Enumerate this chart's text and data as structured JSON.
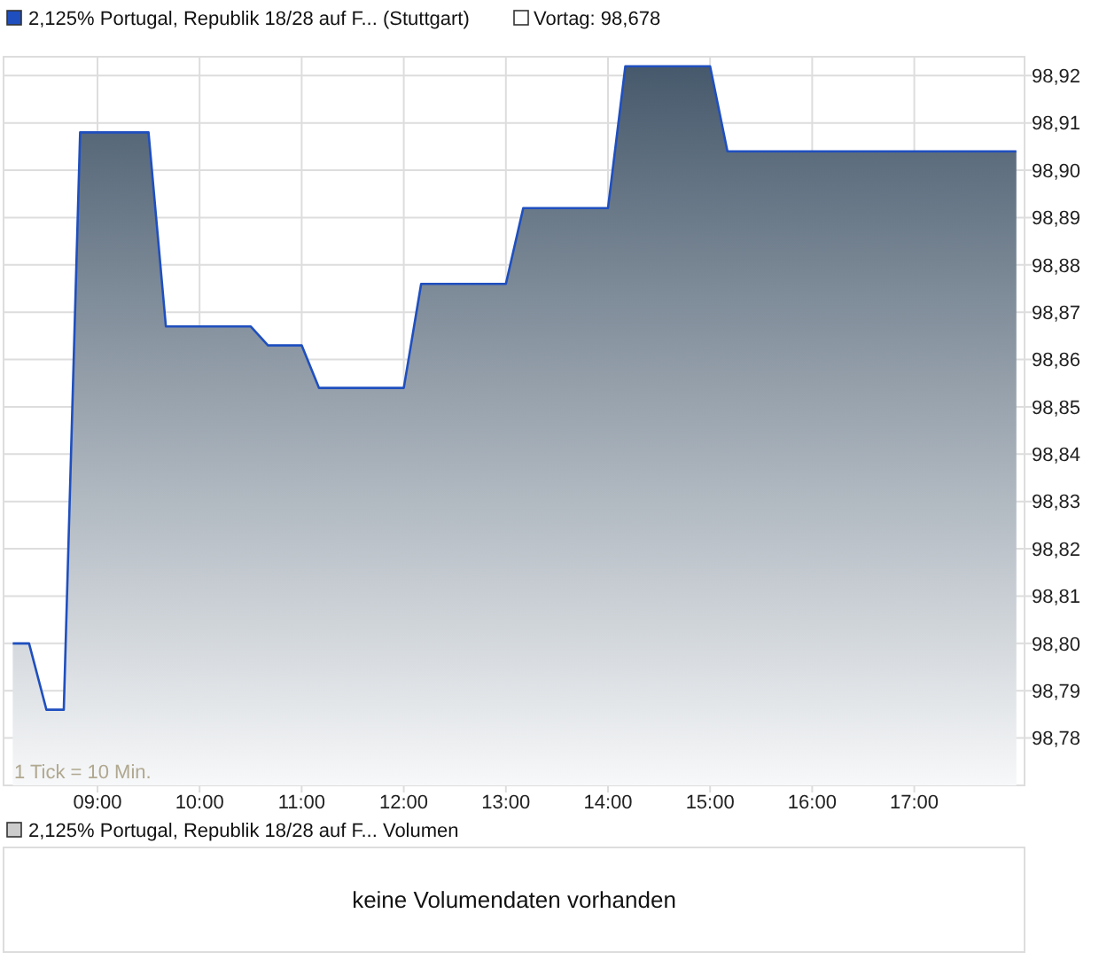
{
  "chart_data": {
    "type": "area",
    "legend": "top left",
    "grid": true,
    "x": [
      8.17,
      8.33,
      8.5,
      8.67,
      8.83,
      9.5,
      9.67,
      10.5,
      10.67,
      11,
      11.17,
      12,
      12.17,
      13,
      13.17,
      14,
      14.17,
      15,
      15.17,
      18
    ],
    "series": [
      {
        "name": "2,125% Portugal, Republik 18/28 auf F... (Stuttgart)",
        "color": "#1f4fbf",
        "values": [
          98.8,
          98.8,
          98.786,
          98.786,
          98.908,
          98.908,
          98.867,
          98.867,
          98.863,
          98.863,
          98.854,
          98.854,
          98.876,
          98.876,
          98.892,
          98.892,
          98.922,
          98.922,
          98.904,
          98.904
        ]
      }
    ],
    "xlim": [
      8.08,
      18.08
    ],
    "xticks": [
      {
        "value": 9,
        "label": "09:00"
      },
      {
        "value": 10,
        "label": "10:00"
      },
      {
        "value": 11,
        "label": "11:00"
      },
      {
        "value": 12,
        "label": "12:00"
      },
      {
        "value": 13,
        "label": "13:00"
      },
      {
        "value": 14,
        "label": "14:00"
      },
      {
        "value": 15,
        "label": "15:00"
      },
      {
        "value": 16,
        "label": "16:00"
      },
      {
        "value": 17,
        "label": "17:00"
      }
    ],
    "ylim": [
      98.77,
      98.924
    ],
    "yticks": [
      {
        "value": 98.78,
        "label": "98,78"
      },
      {
        "value": 98.79,
        "label": "98,79"
      },
      {
        "value": 98.8,
        "label": "98,80"
      },
      {
        "value": 98.81,
        "label": "98,81"
      },
      {
        "value": 98.82,
        "label": "98,82"
      },
      {
        "value": 98.83,
        "label": "98,83"
      },
      {
        "value": 98.84,
        "label": "98,84"
      },
      {
        "value": 98.85,
        "label": "98,85"
      },
      {
        "value": 98.86,
        "label": "98,86"
      },
      {
        "value": 98.87,
        "label": "98,87"
      },
      {
        "value": 98.88,
        "label": "98,88"
      },
      {
        "value": 98.89,
        "label": "98,89"
      },
      {
        "value": 98.9,
        "label": "98,90"
      },
      {
        "value": 98.91,
        "label": "98,91"
      },
      {
        "value": 98.92,
        "label": "98,92"
      }
    ],
    "annotations": [
      "Vortag: 98,678",
      "1 Tick = 10 Min.",
      "2,125% Portugal, Republik 18/28 auf F... Volumen",
      "keine Volumendaten vorhanden"
    ]
  }
}
